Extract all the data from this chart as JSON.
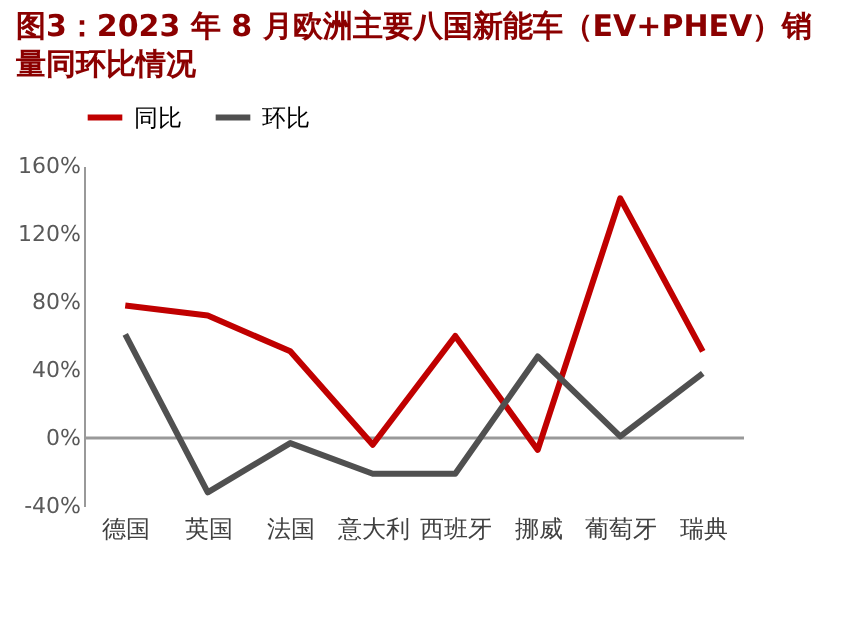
{
  "chart_data": {
    "type": "line",
    "title": "图3：2023 年 8 月欧洲主要八国新能车（EV+PHEV）销量同环比情况",
    "categories": [
      "德国",
      "英国",
      "法国",
      "意大利",
      "西班牙",
      "挪威",
      "葡萄牙",
      "瑞典"
    ],
    "series": [
      {
        "name": "同比",
        "color": "#c00000",
        "values": [
          78,
          72,
          51,
          -4,
          60,
          -7,
          141,
          51
        ]
      },
      {
        "name": "环比",
        "color": "#505050",
        "values": [
          61,
          -32,
          -3,
          -21,
          -21,
          48,
          1,
          38
        ]
      }
    ],
    "ylim": [
      -40,
      160
    ],
    "yticks": [
      {
        "value": -40,
        "label": "-40%"
      },
      {
        "value": 0,
        "label": "0%"
      },
      {
        "value": 40,
        "label": "40%"
      },
      {
        "value": 80,
        "label": "80%"
      },
      {
        "value": 120,
        "label": "120%"
      },
      {
        "value": 160,
        "label": "160%"
      }
    ],
    "ref_lines": [
      {
        "axis": "y",
        "value": 0,
        "color": "#999999"
      }
    ],
    "grid": false,
    "legend": "top",
    "marker": "none",
    "line_style": "solid"
  }
}
